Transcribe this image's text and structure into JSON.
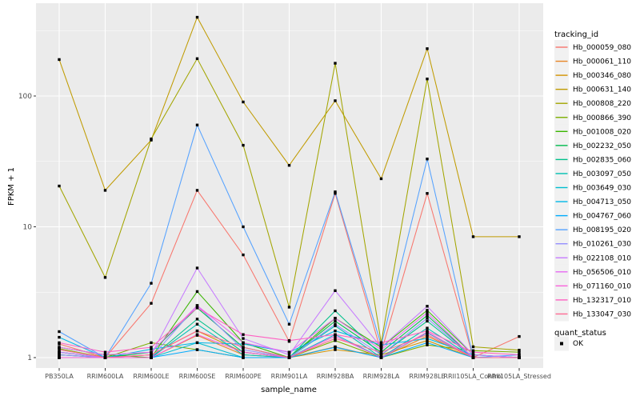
{
  "chart_data": {
    "type": "line",
    "title": "",
    "xlabel": "sample_name",
    "ylabel": "FPKM + 1",
    "y_scale": "log10",
    "y_ticks": [
      1,
      10,
      100
    ],
    "y_minor": [
      3.1623,
      31.623,
      316.23
    ],
    "ylim": [
      1,
      500
    ],
    "grid": "on",
    "legend_position": "right",
    "legend_title": "tracking_id",
    "legend2_title": "quant_status",
    "legend2_items": [
      {
        "label": "OK",
        "marker": "black-square"
      }
    ],
    "panel_bg": "#EBEBEB",
    "grid_color": "#FFFFFF",
    "key_bg": "#F1F1F1",
    "point_color": "#000000",
    "tick_color": "#333333",
    "categories": [
      "PB350LA",
      "RRIM600LA",
      "RRIM600LE",
      "RRIM600SE",
      "RRIM600PE",
      "RRIM901LA",
      "RRIM928BA",
      "RRIM928LA",
      "RRIM928LE",
      "RRII105LA_Control",
      "RRII105LA_Stressed"
    ],
    "series": [
      {
        "name": "Hb_000059_080",
        "color": "#F8766D",
        "values": [
          1.27,
          1.0,
          2.6,
          19,
          6.1,
          1.33,
          18,
          1.1,
          18,
          1.0,
          1.45
        ]
      },
      {
        "name": "Hb_000061_110",
        "color": "#E88526",
        "values": [
          1.05,
          1.0,
          1.0,
          1.48,
          1.05,
          1.0,
          1.21,
          1.0,
          1.46,
          1.0,
          1.0
        ]
      },
      {
        "name": "Hb_000346_080",
        "color": "#D39200",
        "values": [
          1.1,
          1.0,
          1.05,
          1.6,
          1.1,
          1.0,
          1.15,
          1.05,
          1.35,
          1.0,
          1.0
        ]
      },
      {
        "name": "Hb_000631_140",
        "color": "#C09B00",
        "values": [
          190,
          19,
          46,
          400,
          90,
          29.5,
          92,
          23.3,
          230,
          8.4,
          8.4
        ]
      },
      {
        "name": "Hb_000808_220",
        "color": "#A3A500",
        "values": [
          20.5,
          4.1,
          47,
          193,
          42,
          2.43,
          178,
          1.3,
          135,
          1.21,
          1.14
        ]
      },
      {
        "name": "Hb_000866_390",
        "color": "#7CAE00",
        "values": [
          1.17,
          1.0,
          1.3,
          1.15,
          1.0,
          1.0,
          1.35,
          1.0,
          1.25,
          1.13,
          1.1
        ]
      },
      {
        "name": "Hb_001008_020",
        "color": "#39B600",
        "values": [
          1.2,
          1.05,
          1.0,
          3.2,
          1.3,
          1.0,
          2.0,
          1.2,
          2.3,
          1.05,
          1.0
        ]
      },
      {
        "name": "Hb_002232_050",
        "color": "#00BB4E",
        "values": [
          1.0,
          1.0,
          1.1,
          2.4,
          1.2,
          1.0,
          1.9,
          1.1,
          2.1,
          1.0,
          1.0
        ]
      },
      {
        "name": "Hb_002835_060",
        "color": "#00C08B",
        "values": [
          1.05,
          1.0,
          1.0,
          1.97,
          1.1,
          1.0,
          2.28,
          1.05,
          1.9,
          1.0,
          1.0
        ]
      },
      {
        "name": "Hb_003097_050",
        "color": "#00C0B2",
        "values": [
          1.0,
          1.0,
          1.0,
          1.8,
          1.05,
          1.0,
          1.75,
          1.0,
          1.68,
          1.0,
          1.0
        ]
      },
      {
        "name": "Hb_003649_030",
        "color": "#00BED0",
        "values": [
          1.1,
          1.0,
          1.0,
          1.3,
          1.0,
          1.0,
          1.5,
          1.0,
          1.55,
          1.0,
          1.0
        ]
      },
      {
        "name": "Hb_004713_050",
        "color": "#00B7E8",
        "values": [
          1.43,
          1.0,
          1.16,
          1.3,
          1.27,
          1.1,
          1.6,
          1.25,
          1.4,
          1.05,
          1.0
        ]
      },
      {
        "name": "Hb_004767_060",
        "color": "#00ABFD",
        "values": [
          1.0,
          1.0,
          1.0,
          1.15,
          1.0,
          1.0,
          1.2,
          1.0,
          1.3,
          1.0,
          1.0
        ]
      },
      {
        "name": "Hb_008195_020",
        "color": "#55A2FF",
        "values": [
          1.58,
          1.0,
          3.7,
          60,
          10,
          1.8,
          18.5,
          1.25,
          33,
          1.0,
          1.05
        ]
      },
      {
        "name": "Hb_010261_030",
        "color": "#9590FF",
        "values": [
          1.05,
          1.0,
          1.0,
          2.5,
          1.15,
          1.0,
          1.8,
          1.05,
          2.0,
          1.0,
          1.0
        ]
      },
      {
        "name": "Hb_022108_010",
        "color": "#C77CFF",
        "values": [
          1.1,
          1.0,
          1.05,
          4.84,
          1.4,
          1.05,
          3.25,
          1.2,
          2.47,
          1.05,
          1.0
        ]
      },
      {
        "name": "Hb_056506_010",
        "color": "#E76BF3",
        "values": [
          1.2,
          1.05,
          1.1,
          2.5,
          1.3,
          1.1,
          2.0,
          1.15,
          2.2,
          1.0,
          1.0
        ]
      },
      {
        "name": "Hb_071160_010",
        "color": "#FA62DB",
        "values": [
          1.0,
          1.0,
          1.0,
          1.5,
          1.1,
          1.0,
          1.46,
          1.0,
          1.57,
          1.0,
          1.0
        ]
      },
      {
        "name": "Hb_132317_010",
        "color": "#FF61C3",
        "values": [
          1.3,
          1.1,
          1.2,
          2.4,
          1.5,
          1.35,
          1.5,
          1.3,
          1.6,
          1.1,
          1.05
        ]
      },
      {
        "name": "Hb_133047_030",
        "color": "#FF6A94",
        "values": [
          1.15,
          1.0,
          1.05,
          1.6,
          1.2,
          1.0,
          1.4,
          1.1,
          1.5,
          1.0,
          1.0
        ]
      }
    ]
  }
}
